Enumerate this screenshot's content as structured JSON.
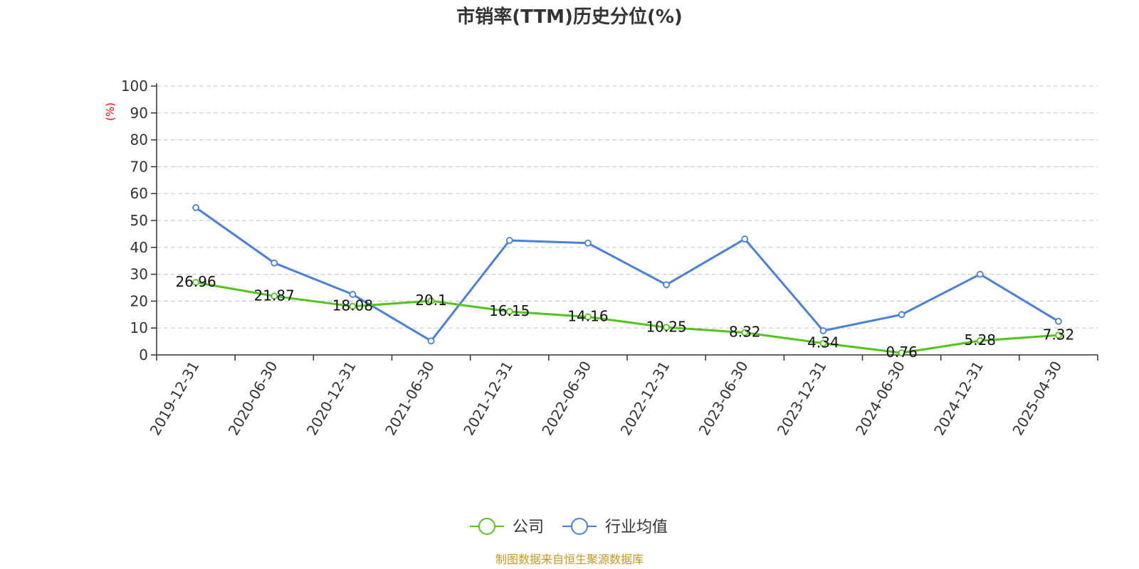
{
  "chart_data": {
    "type": "line",
    "title": "市销率(TTM)历史分位(%)",
    "ylabel": "(%)",
    "ylim": [
      0,
      100
    ],
    "yticks": [
      0,
      10,
      20,
      30,
      40,
      50,
      60,
      70,
      80,
      90,
      100
    ],
    "grid": true,
    "legend_position": "bottom-center",
    "categories": [
      "2019-12-31",
      "2020-06-30",
      "2020-12-31",
      "2021-06-30",
      "2021-12-31",
      "2022-06-30",
      "2022-12-31",
      "2023-06-30",
      "2023-12-31",
      "2024-06-30",
      "2024-12-31",
      "2025-04-30"
    ],
    "series": [
      {
        "name": "公司",
        "color": "#52c41a",
        "show_labels": true,
        "values": [
          26.96,
          21.87,
          18.08,
          20.1,
          16.15,
          14.16,
          10.25,
          8.32,
          4.34,
          0.76,
          5.28,
          7.32
        ]
      },
      {
        "name": "行业均值",
        "color": "#4a7fdc",
        "show_labels": false,
        "values": [
          54.8,
          34.2,
          22.5,
          5.2,
          42.6,
          41.6,
          26.1,
          43.1,
          9.0,
          15.0,
          30.0,
          12.5
        ]
      }
    ],
    "source": "制图数据来自恒生聚源数据库",
    "source_color": "#c8961e",
    "ylabel_color": "#ff0000"
  }
}
